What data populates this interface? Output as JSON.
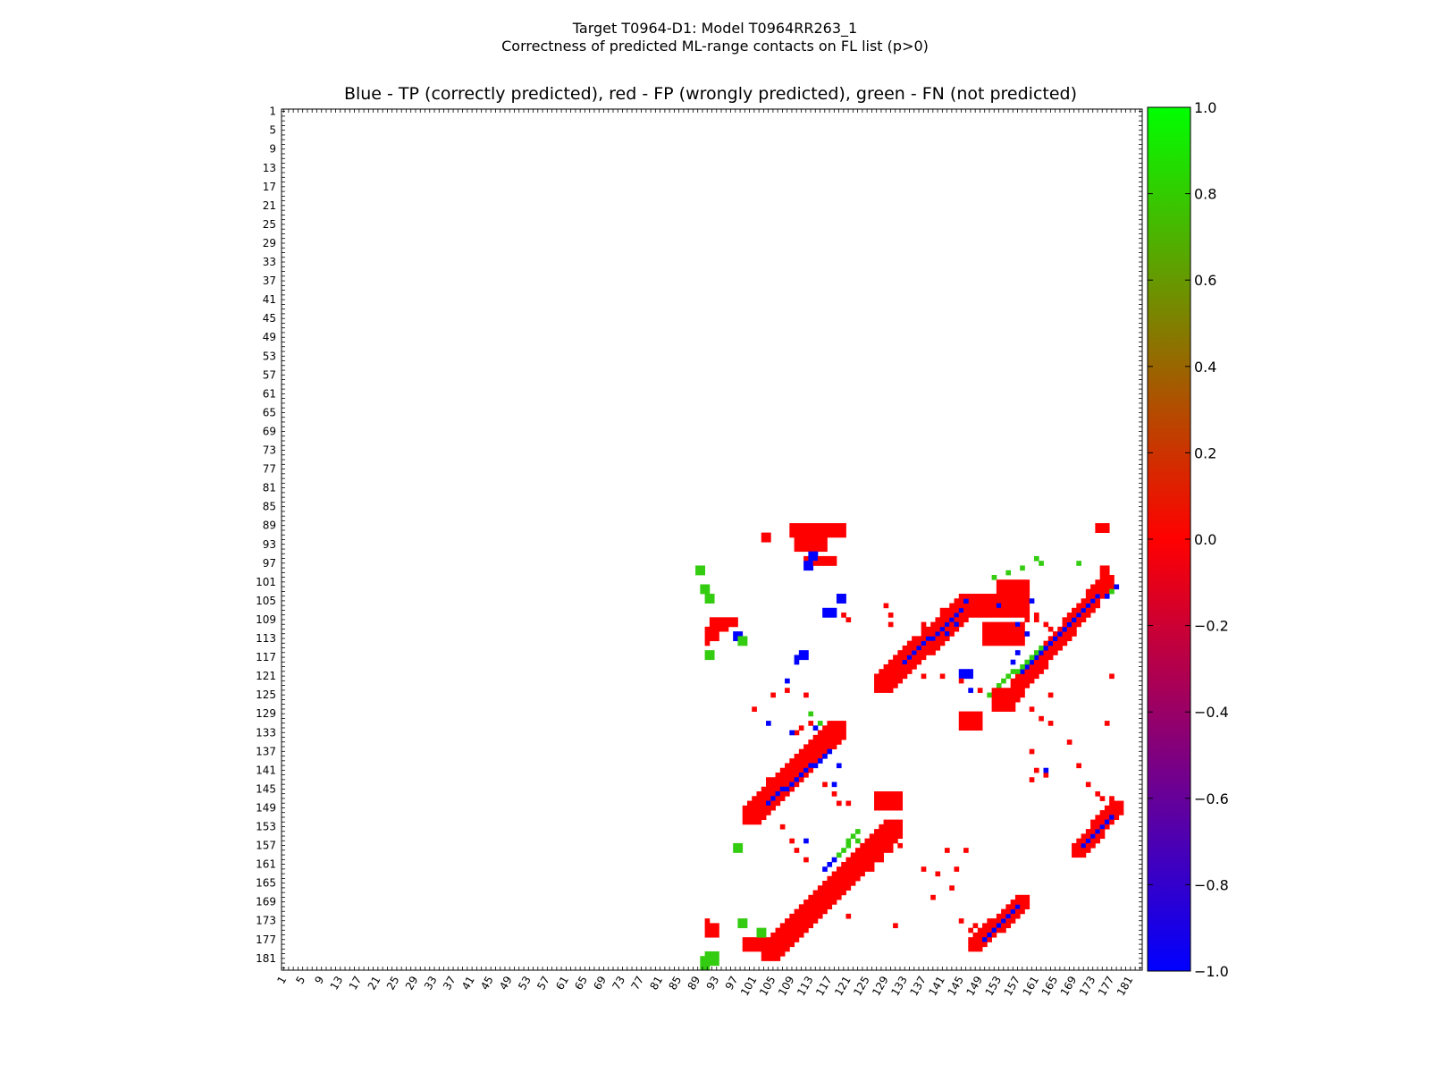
{
  "figure": {
    "title_line1": "Target T0964-D1: Model T0964RR263_1",
    "title_line2": "Correctness of predicted ML-range contacts on FL list (p>0)"
  },
  "chart_data": {
    "type": "heatmap",
    "title": "Blue - TP (correctly predicted), red - FP (wrongly predicted), green - FN (not predicted)",
    "xlabel": "",
    "ylabel": "",
    "residue_range": [
      1,
      183
    ],
    "x_tick_labels": [
      "1",
      "5",
      "9",
      "13",
      "17",
      "21",
      "25",
      "29",
      "33",
      "37",
      "41",
      "45",
      "49",
      "53",
      "57",
      "61",
      "65",
      "69",
      "73",
      "77",
      "81",
      "85",
      "89",
      "93",
      "97",
      "101",
      "105",
      "109",
      "113",
      "117",
      "121",
      "125",
      "129",
      "133",
      "137",
      "141",
      "145",
      "149",
      "153",
      "157",
      "161",
      "165",
      "169",
      "173",
      "177",
      "181"
    ],
    "y_tick_labels": [
      "1",
      "5",
      "9",
      "13",
      "17",
      "21",
      "25",
      "29",
      "33",
      "37",
      "41",
      "45",
      "49",
      "53",
      "57",
      "61",
      "65",
      "69",
      "73",
      "77",
      "81",
      "85",
      "89",
      "93",
      "97",
      "101",
      "105",
      "109",
      "113",
      "117",
      "121",
      "125",
      "129",
      "133",
      "137",
      "141",
      "145",
      "149",
      "153",
      "157",
      "161",
      "165",
      "169",
      "173",
      "177",
      "181"
    ],
    "colorbar": {
      "range": [
        -1.0,
        1.0
      ],
      "tick_labels": [
        "1.0",
        "0.8",
        "0.6",
        "0.4",
        "0.2",
        "0.0",
        "−0.2",
        "−0.4",
        "−0.6",
        "−0.8",
        "−1.0"
      ],
      "colors": {
        "min": "#0000ff",
        "mid": "#ff0000",
        "max": "#00ff00"
      }
    },
    "categories": {
      "TP": {
        "value": -1,
        "color": "#0000ff"
      },
      "FP": {
        "value": 0,
        "color": "#ff0000"
      },
      "FN": {
        "value": 1,
        "color": "#33cc11"
      }
    },
    "clusters": [
      {
        "label": "FP",
        "segments": [
          [
            91,
            111,
            91,
            114
          ],
          [
            92,
            109,
            93,
            113
          ],
          [
            94,
            109,
            95,
            111
          ],
          [
            96,
            109,
            97,
            110
          ],
          [
            103,
            91,
            104,
            92
          ],
          [
            109,
            89,
            120,
            91
          ],
          [
            110,
            92,
            116,
            94
          ],
          [
            112,
            96,
            118,
            97
          ],
          [
            174,
            89,
            176,
            90
          ],
          [
            175,
            98,
            176,
            99
          ],
          [
            155,
            103,
            156,
            104
          ],
          [
            153,
            101,
            159,
            104
          ],
          [
            147,
            104,
            159,
            108
          ],
          [
            150,
            110,
            158,
            114
          ]
        ]
      },
      {
        "label": "TP",
        "segments": [
          [
            97,
            112,
            98,
            113
          ],
          [
            113,
            95,
            114,
            96
          ],
          [
            112,
            97,
            113,
            98
          ],
          [
            110,
            117,
            110,
            118
          ],
          [
            111,
            116,
            112,
            117
          ],
          [
            116,
            107,
            118,
            108
          ],
          [
            119,
            104,
            120,
            105
          ],
          [
            145,
            120,
            147,
            121
          ]
        ]
      },
      {
        "label": "FN",
        "segments": [
          [
            91,
            104,
            92,
            105
          ],
          [
            89,
            98,
            90,
            99
          ],
          [
            91,
            116,
            92,
            117
          ],
          [
            98,
            113,
            99,
            114
          ],
          [
            90,
            102,
            91,
            103
          ]
        ]
      },
      {
        "label": "FP",
        "diagonal": {
          "from": [
            129,
            123
          ],
          "to": [
            147,
            106
          ],
          "width": 4
        }
      },
      {
        "label": "TP",
        "diagonal": {
          "from": [
            133,
            118
          ],
          "to": [
            145,
            107
          ],
          "width": 1
        }
      },
      {
        "label": "FP",
        "diagonal": {
          "from": [
            154,
            127
          ],
          "to": [
            176,
            101
          ],
          "width": 3
        }
      },
      {
        "label": "TP",
        "diagonal": {
          "from": [
            158,
            120
          ],
          "to": [
            174,
            104
          ],
          "width": 1
        }
      },
      {
        "label": "FN",
        "diagonal": {
          "from": [
            151,
            125
          ],
          "to": [
            162,
            115
          ],
          "width": 1
        }
      },
      {
        "label": "FP",
        "diagonal": {
          "from": [
            101,
            151
          ],
          "to": [
            119,
            133
          ],
          "width": 4
        }
      },
      {
        "label": "TP",
        "diagonal": {
          "from": [
            104,
            148
          ],
          "to": [
            117,
            137
          ],
          "width": 1
        }
      },
      {
        "label": "FP",
        "diagonal": {
          "from": [
            105,
            180
          ],
          "to": [
            131,
            154
          ],
          "width": 4
        }
      },
      {
        "label": "TP",
        "diagonal": {
          "from": [
            116,
            162
          ],
          "to": [
            120,
            158
          ],
          "width": 1
        }
      },
      {
        "label": "FN",
        "diagonal": {
          "from": [
            119,
            159
          ],
          "to": [
            123,
            154
          ],
          "width": 1
        }
      },
      {
        "label": "FP",
        "diagonal": {
          "from": [
            148,
            178
          ],
          "to": [
            158,
            169
          ],
          "width": 3
        }
      },
      {
        "label": "TP",
        "diagonal": {
          "from": [
            150,
            177
          ],
          "to": [
            157,
            170
          ],
          "width": 1
        }
      },
      {
        "label": "FP",
        "diagonal": {
          "from": [
            170,
            158
          ],
          "to": [
            178,
            149
          ],
          "width": 3
        }
      },
      {
        "label": "TP",
        "diagonal": {
          "from": [
            171,
            157
          ],
          "to": [
            177,
            151
          ],
          "width": 1
        }
      },
      {
        "label": "FP",
        "segments": [
          [
            145,
            129,
            149,
            132
          ],
          [
            152,
            124,
            156,
            128
          ],
          [
            127,
            146,
            132,
            149
          ],
          [
            99,
            177,
            105,
            179
          ],
          [
            91,
            174,
            93,
            176
          ],
          [
            91,
            173,
            91,
            173
          ]
        ]
      },
      {
        "label": "FN",
        "segments": [
          [
            91,
            180,
            93,
            182
          ],
          [
            97,
            157,
            98,
            158
          ],
          [
            98,
            173,
            99,
            174
          ],
          [
            102,
            175,
            103,
            176
          ],
          [
            90,
            181,
            91,
            183
          ]
        ]
      }
    ],
    "scattered_cells": {
      "FP": [
        [
          120,
          108
        ],
        [
          121,
          109
        ],
        [
          129,
          106
        ],
        [
          130,
          108
        ],
        [
          130,
          110
        ],
        [
          137,
          110
        ],
        [
          137,
          111
        ],
        [
          141,
          107
        ],
        [
          159,
          108
        ],
        [
          161,
          108
        ],
        [
          161,
          109
        ],
        [
          163,
          110
        ],
        [
          164,
          111
        ],
        [
          165,
          112
        ],
        [
          159,
          109
        ],
        [
          137,
          121
        ],
        [
          141,
          121
        ],
        [
          145,
          122
        ],
        [
          149,
          124
        ],
        [
          156,
          124
        ],
        [
          164,
          125
        ],
        [
          162,
          130
        ],
        [
          164,
          131
        ],
        [
          160,
          128
        ],
        [
          177,
          121
        ],
        [
          176,
          131
        ],
        [
          168,
          135
        ],
        [
          170,
          140
        ],
        [
          172,
          144
        ],
        [
          174,
          146
        ],
        [
          175,
          147
        ],
        [
          177,
          147
        ],
        [
          104,
          143
        ],
        [
          106,
          145
        ],
        [
          110,
          133
        ],
        [
          111,
          132
        ],
        [
          113,
          131
        ],
        [
          116,
          144
        ],
        [
          118,
          146
        ],
        [
          119,
          148
        ],
        [
          121,
          148
        ],
        [
          126,
          162
        ],
        [
          128,
          160
        ],
        [
          130,
          158
        ],
        [
          132,
          157
        ],
        [
          137,
          162
        ],
        [
          142,
          158
        ],
        [
          146,
          158
        ],
        [
          121,
          172
        ],
        [
          131,
          174
        ],
        [
          139,
          168
        ],
        [
          143,
          166
        ],
        [
          145,
          173
        ],
        [
          147,
          175
        ],
        [
          148,
          174
        ],
        [
          160,
          137
        ],
        [
          161,
          141
        ],
        [
          163,
          142
        ],
        [
          160,
          143
        ],
        [
          101,
          128
        ],
        [
          105,
          125
        ],
        [
          108,
          124
        ],
        [
          107,
          153
        ],
        [
          109,
          156
        ],
        [
          110,
          158
        ],
        [
          112,
          160
        ],
        [
          112,
          125
        ],
        [
          140,
          163
        ],
        [
          144,
          162
        ]
      ],
      "TP": [
        [
          108,
          122
        ],
        [
          104,
          131
        ],
        [
          109,
          133
        ],
        [
          112,
          156
        ],
        [
          114,
          132
        ],
        [
          118,
          144
        ],
        [
          142,
          112
        ],
        [
          144,
          110
        ],
        [
          146,
          105
        ],
        [
          147,
          124
        ],
        [
          153,
          106
        ],
        [
          160,
          105
        ],
        [
          157,
          110
        ],
        [
          159,
          112
        ],
        [
          163,
          141
        ],
        [
          176,
          104
        ],
        [
          178,
          102
        ],
        [
          119,
          140
        ],
        [
          156,
          118
        ],
        [
          157,
          116
        ]
      ],
      "FN": [
        [
          152,
          100
        ],
        [
          155,
          99
        ],
        [
          158,
          98
        ],
        [
          161,
          96
        ],
        [
          162,
          97
        ],
        [
          170,
          97
        ],
        [
          177,
          103
        ],
        [
          113,
          129
        ],
        [
          115,
          131
        ],
        [
          123,
          156
        ]
      ]
    }
  }
}
